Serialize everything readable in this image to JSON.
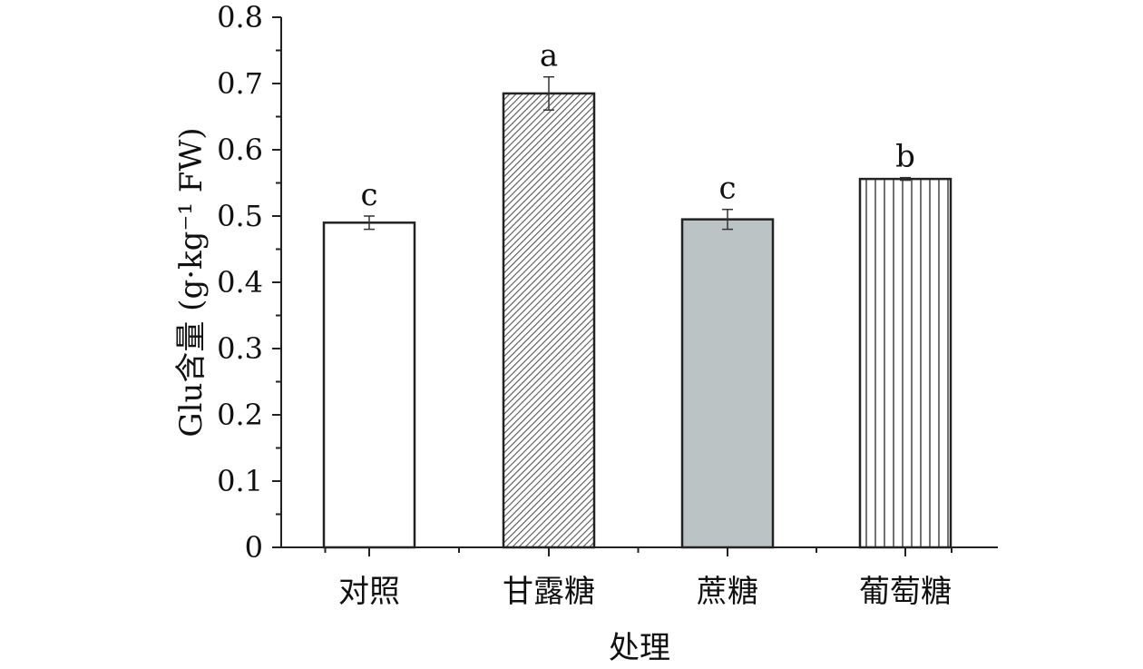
{
  "chart_data": {
    "type": "bar",
    "categories": [
      "对照",
      "甘露糖",
      "蔗糖",
      "葡萄糖"
    ],
    "values": [
      0.49,
      0.685,
      0.495,
      0.556
    ],
    "errors": [
      0.01,
      0.025,
      0.015,
      0.002
    ],
    "significance": [
      "c",
      "a",
      "c",
      "b"
    ],
    "xlabel": "处理",
    "ylabel": "Glu含量 (g·kg⁻¹ FW)",
    "ylim": [
      0,
      0.8
    ],
    "yticks": [
      0,
      0.1,
      0.2,
      0.3,
      0.4,
      0.5,
      0.6,
      0.7,
      0.8
    ],
    "grid": false,
    "bar_styles": [
      "white",
      "diagonal-hatch",
      "gray-fill",
      "vertical-lines"
    ],
    "colors": {
      "axis": "#222222",
      "gray_bar": "#bcc3c5",
      "hatch": "#555555"
    }
  }
}
